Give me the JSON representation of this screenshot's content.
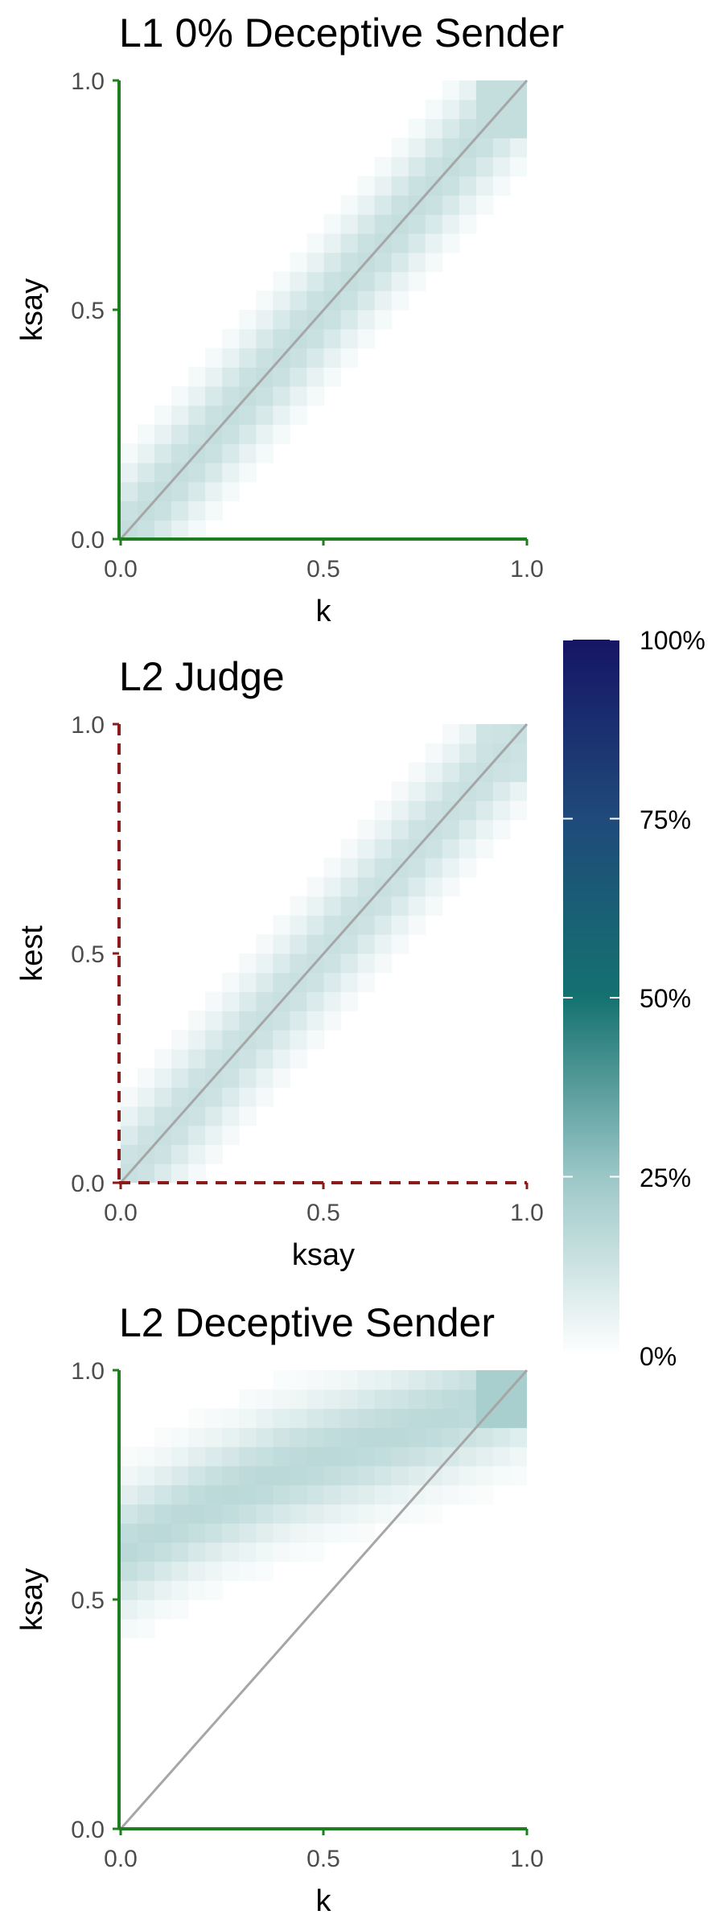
{
  "chart_data": [
    {
      "type": "heatmap",
      "title": "L1 0% Deceptive Sender",
      "xlabel": "k",
      "ylabel": "ksay",
      "xlim": [
        0,
        1
      ],
      "ylim": [
        0,
        1
      ],
      "x_ticks": [
        "0.0",
        "0.5",
        "1.0"
      ],
      "y_ticks": [
        "0.0",
        "0.5",
        "1.0"
      ],
      "reference_line": "y = x",
      "axis_style": "solid",
      "axis_color": "#1e7d1e",
      "ridge": [
        [
          0.0,
          0.0
        ],
        [
          0.25,
          0.25
        ],
        [
          0.5,
          0.5
        ],
        [
          0.75,
          0.75
        ],
        [
          1.0,
          1.0
        ]
      ],
      "ridge_density": 0.15,
      "ridge_spread": 0.09,
      "corner_density": 0.15
    },
    {
      "type": "heatmap",
      "title": "L2 Judge",
      "xlabel": "ksay",
      "ylabel": "kest",
      "xlim": [
        0,
        1
      ],
      "ylim": [
        0,
        1
      ],
      "x_ticks": [
        "0.0",
        "0.5",
        "1.0"
      ],
      "y_ticks": [
        "0.0",
        "0.5",
        "1.0"
      ],
      "reference_line": "y = x",
      "axis_style": "dashed",
      "axis_color": "#8b1a1a",
      "ridge": [
        [
          0.0,
          0.0
        ],
        [
          0.25,
          0.25
        ],
        [
          0.5,
          0.5
        ],
        [
          0.75,
          0.75
        ],
        [
          1.0,
          1.0
        ]
      ],
      "ridge_density": 0.14,
      "ridge_spread": 0.09,
      "corner_density": 0.12
    },
    {
      "type": "heatmap",
      "title": "L2 Deceptive Sender",
      "xlabel": "k",
      "ylabel": "ksay",
      "xlim": [
        0,
        1
      ],
      "ylim": [
        0,
        1
      ],
      "x_ticks": [
        "0.0",
        "0.5",
        "1.0"
      ],
      "y_ticks": [
        "0.0",
        "0.5",
        "1.0"
      ],
      "reference_line": "y = x",
      "axis_style": "solid",
      "axis_color": "#1e7d1e",
      "ridge": [
        [
          0.0,
          0.6
        ],
        [
          0.2,
          0.7
        ],
        [
          0.4,
          0.78
        ],
        [
          0.6,
          0.84
        ],
        [
          0.8,
          0.9
        ],
        [
          1.0,
          0.97
        ]
      ],
      "ridge_density": 0.17,
      "ridge_spread": 0.09,
      "corner_density": 0.22
    }
  ],
  "legend": {
    "ticks": [
      "100%",
      "75%",
      "50%",
      "25%",
      "0%"
    ],
    "tick_values": [
      1.0,
      0.75,
      0.5,
      0.25,
      0.0
    ],
    "scale": [
      [
        0.0,
        "#ffffff"
      ],
      [
        0.25,
        "#9cc7c7"
      ],
      [
        0.5,
        "#147270"
      ],
      [
        0.75,
        "#1f4a7a"
      ],
      [
        1.0,
        "#151565"
      ]
    ]
  },
  "colors": {
    "reference_line": "#a6a6a6",
    "axis_text": "#4d4d4d"
  }
}
